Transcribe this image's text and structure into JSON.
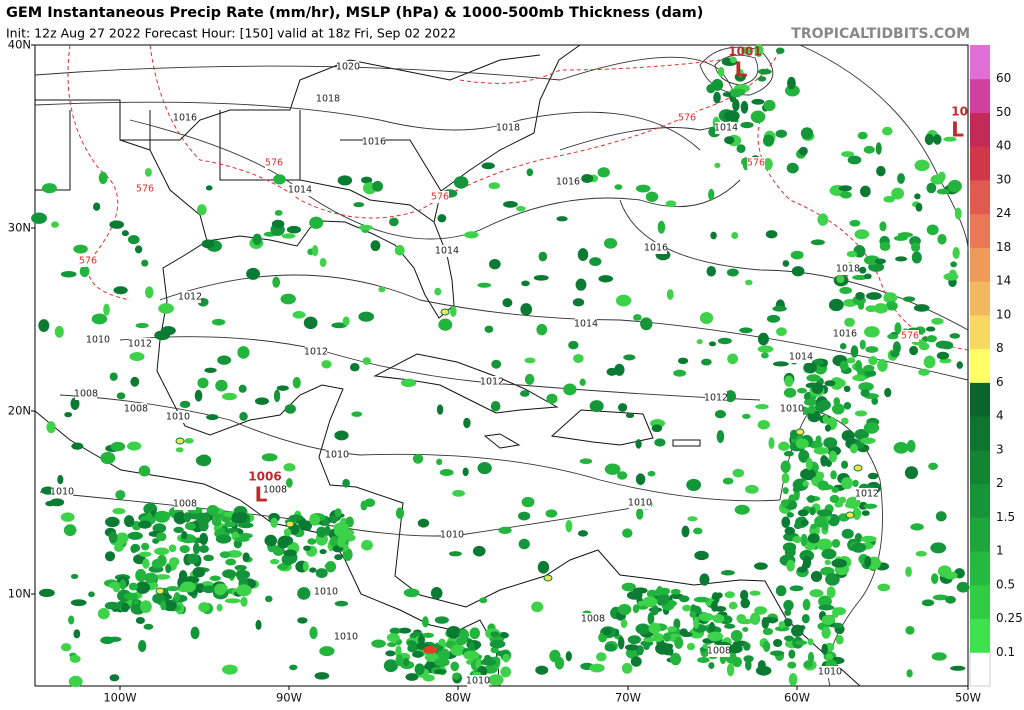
{
  "header": {
    "title": "GEM Instantaneous Precip Rate (mm/hr), MSLP (hPa) & 1000-500mb Thickness (dam)",
    "subtitle": "Init: 12z Aug 27 2022   Forecast Hour: [150]   valid at 18z Fri, Sep 02 2022",
    "site": "TROPICALTIDBITS.COM"
  },
  "map": {
    "lat_labels": [
      "40N",
      "30N",
      "20N",
      "10N"
    ],
    "lon_labels": [
      "100W",
      "90W",
      "80W",
      "70W",
      "60W",
      "50W"
    ],
    "isobar_labels": [
      "1020",
      "1018",
      "1016",
      "1016",
      "1014",
      "1018",
      "1016",
      "1014",
      "1016",
      "1018",
      "1016",
      "1014",
      "1014",
      "1014",
      "1012",
      "1012",
      "1010",
      "1012",
      "1012",
      "1012",
      "1010",
      "1008",
      "1008",
      "1010",
      "1010",
      "1008",
      "1010",
      "1008",
      "1010",
      "1010",
      "1012",
      "1010",
      "1010",
      "1008",
      "1008",
      "1010",
      "1010"
    ],
    "thickness_labels": [
      "576",
      "576",
      "576",
      "576",
      "576",
      "576",
      "576"
    ],
    "pressure_centers": [
      {
        "value": "1006",
        "symbol": "L"
      },
      {
        "value": "1001",
        "symbol": "L"
      },
      {
        "value": "10",
        "symbol": "L"
      }
    ]
  },
  "colorbar": {
    "labels": [
      "0.1",
      "0.25",
      "0.5",
      "1",
      "1.5",
      "2",
      "3",
      "4",
      "6",
      "8",
      "10",
      "14",
      "18",
      "24",
      "30",
      "40",
      "50",
      "60"
    ]
  }
}
